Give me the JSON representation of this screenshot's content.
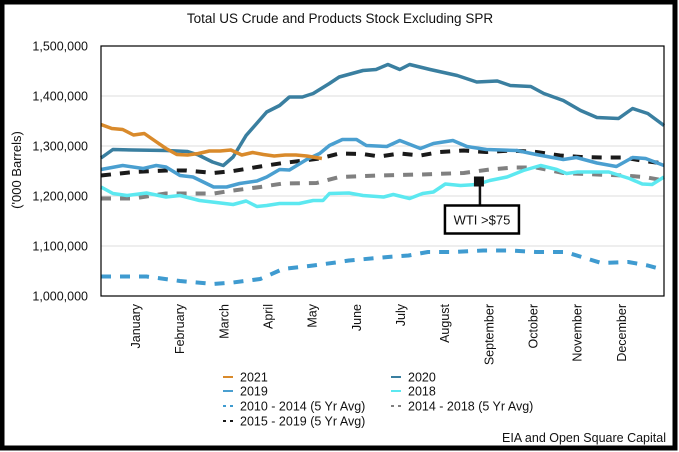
{
  "chart_data": {
    "type": "line",
    "title": "Total US Crude and Products Stock Excluding SPR",
    "ylabel": "('000 Barrels)",
    "xlabel": "",
    "x_unit": "week of year",
    "xlim": [
      0,
      52
    ],
    "ylim": [
      1000000,
      1500000
    ],
    "yticks": [
      1000000,
      1100000,
      1200000,
      1300000,
      1400000,
      1500000
    ],
    "ytick_labels": [
      "1,000,000",
      "1,100,000",
      "1,200,000",
      "1,300,000",
      "1,400,000",
      "1,500,000"
    ],
    "grid": true,
    "month_labels": [
      "January",
      "February",
      "March",
      "April",
      "May",
      "June",
      "July",
      "August",
      "September",
      "October",
      "November",
      "December"
    ],
    "series": [
      {
        "name": "2021",
        "color": "#d98a2b",
        "style": "solid",
        "points": [
          [
            0,
            1343000
          ],
          [
            1,
            1335000
          ],
          [
            2,
            1333000
          ],
          [
            3,
            1322000
          ],
          [
            4,
            1325000
          ],
          [
            5,
            1310000
          ],
          [
            6,
            1295000
          ],
          [
            7,
            1283000
          ],
          [
            8,
            1282000
          ],
          [
            9,
            1285000
          ],
          [
            10,
            1290000
          ],
          [
            11,
            1290000
          ],
          [
            12,
            1292000
          ],
          [
            13,
            1282000
          ],
          [
            14,
            1287000
          ],
          [
            15,
            1283000
          ],
          [
            16,
            1280000
          ],
          [
            17,
            1282000
          ],
          [
            18,
            1282000
          ],
          [
            19,
            1280000
          ],
          [
            20.4,
            1275000
          ]
        ]
      },
      {
        "name": "2020",
        "color": "#3a7fa0",
        "style": "solid",
        "points": [
          [
            0,
            1276000
          ],
          [
            1.1,
            1293000
          ],
          [
            3,
            1292000
          ],
          [
            6,
            1291000
          ],
          [
            8,
            1289000
          ],
          [
            9,
            1282000
          ],
          [
            10.3,
            1268000
          ],
          [
            11.3,
            1261000
          ],
          [
            12.2,
            1278000
          ],
          [
            13.4,
            1321000
          ],
          [
            15.3,
            1368000
          ],
          [
            16.5,
            1381000
          ],
          [
            17.4,
            1398000
          ],
          [
            18.6,
            1398000
          ],
          [
            19.6,
            1405000
          ],
          [
            21.1,
            1425000
          ],
          [
            22,
            1438000
          ],
          [
            24.2,
            1451000
          ],
          [
            25.4,
            1453000
          ],
          [
            26.5,
            1463000
          ],
          [
            27.6,
            1453000
          ],
          [
            28.5,
            1463000
          ],
          [
            30.4,
            1453000
          ],
          [
            32.9,
            1441000
          ],
          [
            34.7,
            1428000
          ],
          [
            36.6,
            1430000
          ],
          [
            37.8,
            1421000
          ],
          [
            39.7,
            1419000
          ],
          [
            40.9,
            1405000
          ],
          [
            42.7,
            1391000
          ],
          [
            44.3,
            1371000
          ],
          [
            45.8,
            1357000
          ],
          [
            47.8,
            1355000
          ],
          [
            49.1,
            1375000
          ],
          [
            50.5,
            1365000
          ],
          [
            52,
            1341000
          ]
        ]
      },
      {
        "name": "2019",
        "color": "#4a9fd0",
        "style": "solid",
        "points": [
          [
            0,
            1253000
          ],
          [
            2,
            1261000
          ],
          [
            3.9,
            1255000
          ],
          [
            5.1,
            1261000
          ],
          [
            6,
            1258000
          ],
          [
            7.3,
            1241000
          ],
          [
            8.5,
            1238000
          ],
          [
            10.4,
            1218000
          ],
          [
            11.6,
            1218000
          ],
          [
            12.8,
            1225000
          ],
          [
            14.4,
            1230000
          ],
          [
            15.3,
            1238000
          ],
          [
            16.5,
            1253000
          ],
          [
            17.4,
            1252000
          ],
          [
            19,
            1273000
          ],
          [
            20.2,
            1285000
          ],
          [
            21.1,
            1301000
          ],
          [
            22.3,
            1313000
          ],
          [
            23.6,
            1313000
          ],
          [
            24.5,
            1301000
          ],
          [
            26.4,
            1299000
          ],
          [
            27.6,
            1311000
          ],
          [
            29.5,
            1295000
          ],
          [
            30.7,
            1305000
          ],
          [
            32.5,
            1311000
          ],
          [
            33.8,
            1299000
          ],
          [
            35.6,
            1293000
          ],
          [
            38.4,
            1291000
          ],
          [
            40.2,
            1283000
          ],
          [
            42.7,
            1273000
          ],
          [
            43.9,
            1277000
          ],
          [
            45.8,
            1266000
          ],
          [
            47.6,
            1259000
          ],
          [
            49.1,
            1277000
          ],
          [
            50.3,
            1275000
          ],
          [
            52,
            1261000
          ]
        ]
      },
      {
        "name": "2018",
        "color": "#5ce8f0",
        "style": "solid",
        "points": [
          [
            0,
            1218000
          ],
          [
            1.1,
            1205000
          ],
          [
            2.4,
            1201000
          ],
          [
            4.2,
            1206000
          ],
          [
            6,
            1198000
          ],
          [
            7.3,
            1201000
          ],
          [
            9.1,
            1191000
          ],
          [
            12.2,
            1183000
          ],
          [
            13.4,
            1190000
          ],
          [
            14.4,
            1179000
          ],
          [
            15.3,
            1181000
          ],
          [
            16.5,
            1185000
          ],
          [
            18.3,
            1185000
          ],
          [
            19.6,
            1191000
          ],
          [
            20.5,
            1191000
          ],
          [
            21.1,
            1205000
          ],
          [
            22.9,
            1206000
          ],
          [
            24.2,
            1201000
          ],
          [
            26.1,
            1198000
          ],
          [
            27,
            1203000
          ],
          [
            28.5,
            1195000
          ],
          [
            29.7,
            1205000
          ],
          [
            30.7,
            1208000
          ],
          [
            31.8,
            1224000
          ],
          [
            33.2,
            1221000
          ],
          [
            34.7,
            1223000
          ],
          [
            35.9,
            1231000
          ],
          [
            37.5,
            1238000
          ],
          [
            39,
            1251000
          ],
          [
            40.6,
            1261000
          ],
          [
            42.1,
            1253000
          ],
          [
            43,
            1245000
          ],
          [
            44,
            1248000
          ],
          [
            45.8,
            1248000
          ],
          [
            46.9,
            1248000
          ],
          [
            48.8,
            1235000
          ],
          [
            50,
            1224000
          ],
          [
            50.9,
            1223000
          ],
          [
            52,
            1238000
          ]
        ]
      },
      {
        "name": "2010 - 2014 (5 Yr Avg)",
        "color": "#3f9bd0",
        "style": "dashed",
        "points": [
          [
            0,
            1039000
          ],
          [
            4.2,
            1039000
          ],
          [
            7.3,
            1030000
          ],
          [
            10.4,
            1024000
          ],
          [
            12.2,
            1027000
          ],
          [
            14.7,
            1034000
          ],
          [
            16.8,
            1054000
          ],
          [
            19.6,
            1061000
          ],
          [
            22,
            1068000
          ],
          [
            22.9,
            1071000
          ],
          [
            26.5,
            1078000
          ],
          [
            28.4,
            1081000
          ],
          [
            30.2,
            1088000
          ],
          [
            32.6,
            1088000
          ],
          [
            35.3,
            1091000
          ],
          [
            37.8,
            1091000
          ],
          [
            40.2,
            1088000
          ],
          [
            42.9,
            1088000
          ],
          [
            44.4,
            1078000
          ],
          [
            46.2,
            1066000
          ],
          [
            48.7,
            1068000
          ],
          [
            50.5,
            1061000
          ],
          [
            52,
            1052000
          ]
        ]
      },
      {
        "name": "2015 - 2019 (5 Yr Avg)",
        "color": "#1a1a1a",
        "style": "dashed",
        "points": [
          [
            0,
            1241000
          ],
          [
            3,
            1248000
          ],
          [
            6,
            1251000
          ],
          [
            7.9,
            1251000
          ],
          [
            10.4,
            1246000
          ],
          [
            12.2,
            1250000
          ],
          [
            14.7,
            1259000
          ],
          [
            16.8,
            1266000
          ],
          [
            18.4,
            1270000
          ],
          [
            20.2,
            1275000
          ],
          [
            22,
            1285000
          ],
          [
            24.2,
            1284000
          ],
          [
            25.7,
            1279000
          ],
          [
            27.6,
            1285000
          ],
          [
            29.5,
            1281000
          ],
          [
            31.3,
            1288000
          ],
          [
            33.5,
            1291000
          ],
          [
            35.6,
            1288000
          ],
          [
            37.8,
            1291000
          ],
          [
            40.2,
            1288000
          ],
          [
            42.4,
            1281000
          ],
          [
            44.3,
            1278000
          ],
          [
            46.4,
            1277000
          ],
          [
            48.2,
            1277000
          ],
          [
            50.2,
            1270000
          ],
          [
            52,
            1265000
          ]
        ]
      },
      {
        "name": "2014 - 2018 (5 Yr Avg)",
        "color": "#808080",
        "style": "dashed",
        "points": [
          [
            0,
            1195000
          ],
          [
            3,
            1195000
          ],
          [
            6,
            1205000
          ],
          [
            8.2,
            1205000
          ],
          [
            10.4,
            1205000
          ],
          [
            12.2,
            1211000
          ],
          [
            14.7,
            1218000
          ],
          [
            16.8,
            1225000
          ],
          [
            19.9,
            1226000
          ],
          [
            22,
            1238000
          ],
          [
            25.7,
            1241000
          ],
          [
            29.5,
            1243000
          ],
          [
            33.5,
            1246000
          ],
          [
            35.9,
            1253000
          ],
          [
            38.1,
            1257000
          ],
          [
            40.2,
            1257000
          ],
          [
            42.7,
            1246000
          ],
          [
            45.8,
            1243000
          ],
          [
            48.2,
            1241000
          ],
          [
            50.2,
            1238000
          ],
          [
            52,
            1231000
          ]
        ]
      }
    ],
    "annotations": [
      {
        "text": "WTI >$75",
        "x": 35,
        "y": 1223000
      }
    ],
    "legend_placement": "bottom",
    "source": "EIA and Open Square Capital"
  }
}
